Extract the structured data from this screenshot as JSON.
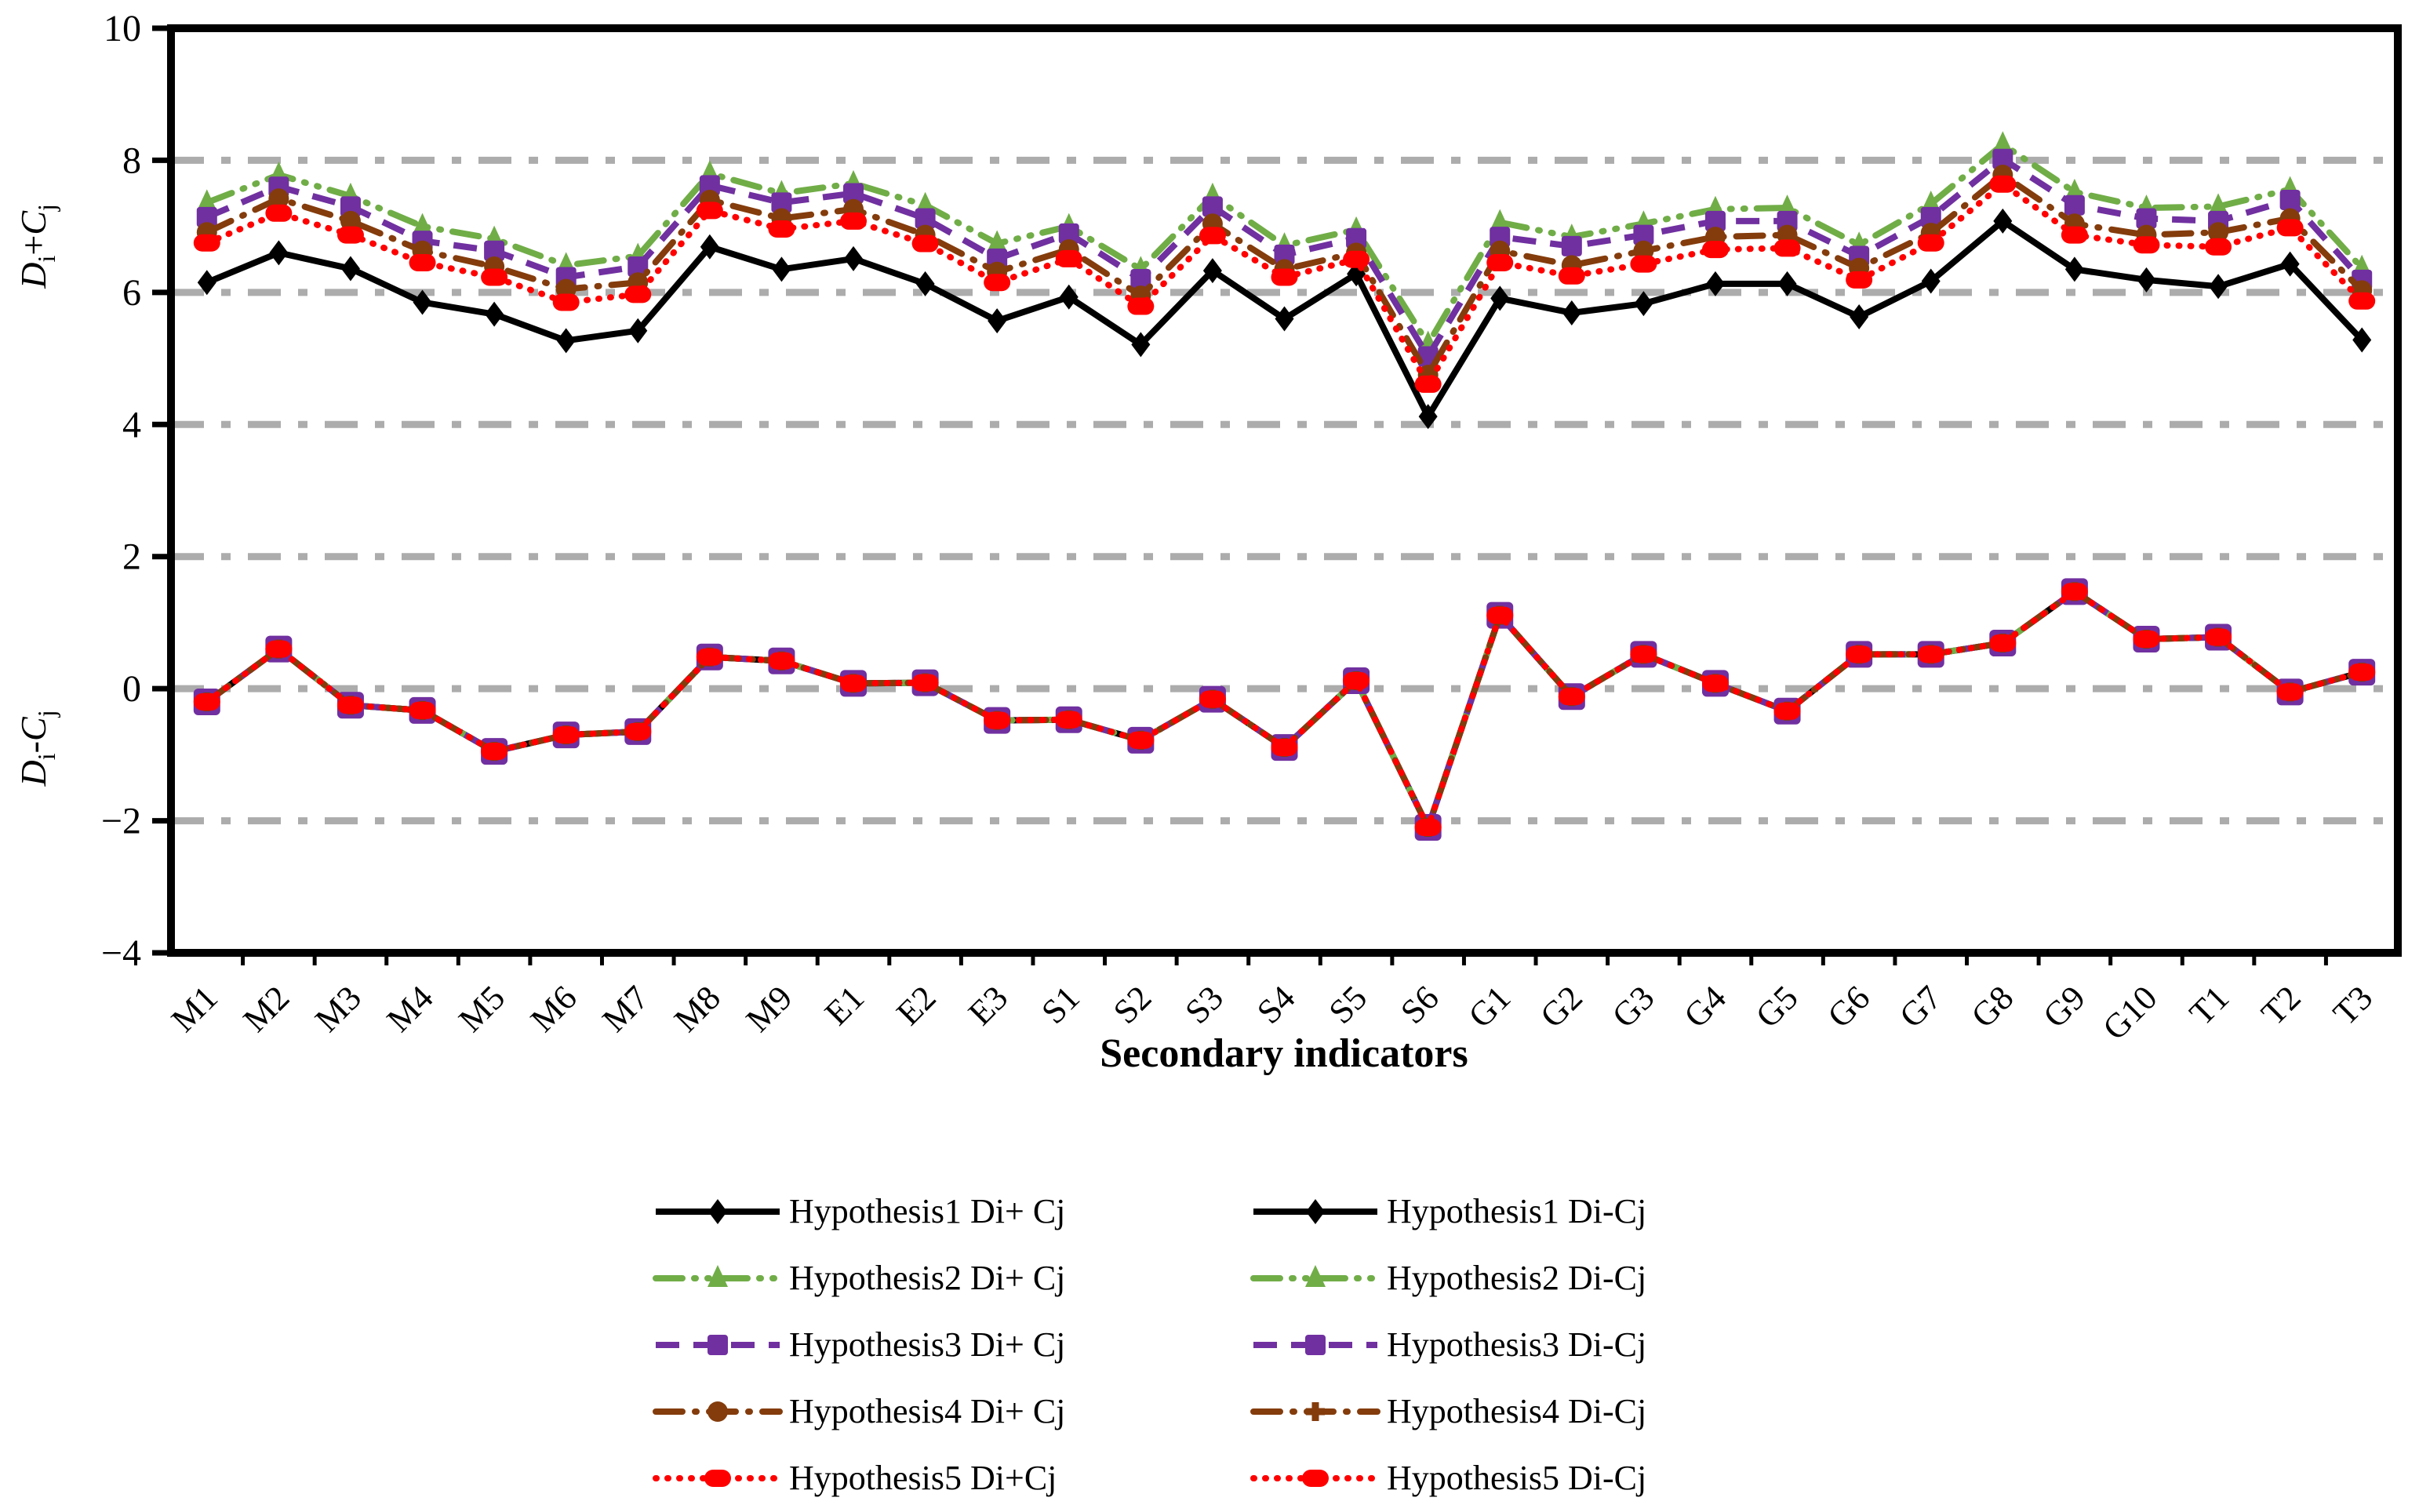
{
  "x_axis_title": "Secondary indicators",
  "y_axis_upper_label": "Di+Cj",
  "y_axis_lower_label": "Di-Cj",
  "chart_data": {
    "type": "line",
    "xlabel": "Secondary indicators",
    "ylabel_upper": "Di+Cj",
    "ylabel_lower": "Di-Cj",
    "ylim": [
      -4,
      10
    ],
    "yticks": [
      10,
      8,
      6,
      4,
      2,
      0,
      -2,
      -4
    ],
    "gridlines_at": [
      8,
      6,
      4,
      2,
      0,
      -2
    ],
    "grid": "dash-dot gray horizontal",
    "legend_position": "bottom, two columns",
    "categories": [
      "M1",
      "M2",
      "M3",
      "M4",
      "M5",
      "M6",
      "M7",
      "M8",
      "M9",
      "E1",
      "E2",
      "E3",
      "S1",
      "S2",
      "S3",
      "S4",
      "S5",
      "S6",
      "G1",
      "G2",
      "G3",
      "G4",
      "G5",
      "G6",
      "G7",
      "G8",
      "G9",
      "G10",
      "T1",
      "T2",
      "T3"
    ],
    "series": [
      {
        "name": "Hypothesis1 Di+ Cj",
        "color": "#000000",
        "style": "solid",
        "marker": "diamond",
        "values": [
          6.15,
          6.6,
          6.36,
          5.85,
          5.67,
          5.27,
          5.42,
          6.69,
          6.35,
          6.51,
          6.13,
          5.57,
          5.93,
          5.21,
          6.33,
          5.6,
          6.28,
          4.12,
          5.91,
          5.69,
          5.83,
          6.13,
          6.13,
          5.63,
          6.17,
          7.08,
          6.35,
          6.19,
          6.09,
          6.43,
          5.28
        ]
      },
      {
        "name": "Hypothesis2 Di+ Cj",
        "color": "#70AD47",
        "style": "dashdotdot",
        "marker": "triangle",
        "values": [
          7.36,
          7.78,
          7.46,
          7.0,
          6.81,
          6.41,
          6.55,
          7.8,
          7.5,
          7.65,
          7.32,
          6.74,
          7.0,
          6.35,
          7.46,
          6.71,
          6.95,
          5.22,
          7.06,
          6.84,
          7.04,
          7.26,
          7.28,
          6.72,
          7.34,
          8.24,
          7.52,
          7.28,
          7.3,
          7.56,
          6.37
        ]
      },
      {
        "name": "Hypothesis3 Di+ Cj",
        "color": "#7030A0",
        "style": "dashed",
        "marker": "square",
        "values": [
          7.14,
          7.6,
          7.3,
          6.78,
          6.63,
          6.23,
          6.39,
          7.62,
          7.36,
          7.5,
          7.12,
          6.51,
          6.89,
          6.2,
          7.3,
          6.57,
          6.82,
          5.03,
          6.84,
          6.7,
          6.87,
          7.08,
          7.08,
          6.55,
          7.14,
          8.02,
          7.32,
          7.12,
          7.08,
          7.4,
          6.19
        ]
      },
      {
        "name": "Hypothesis4 Di+ Cj",
        "color": "#843C0C",
        "style": "dashdot",
        "marker": "circle",
        "values": [
          6.91,
          7.42,
          7.08,
          6.63,
          6.39,
          6.05,
          6.15,
          7.4,
          7.12,
          7.26,
          6.87,
          6.31,
          6.65,
          5.95,
          7.04,
          6.35,
          6.6,
          4.75,
          6.63,
          6.41,
          6.63,
          6.84,
          6.87,
          6.37,
          6.9,
          7.78,
          7.04,
          6.87,
          6.91,
          7.12,
          6.03
        ]
      },
      {
        "name": "Hypothesis5 Di+Cj",
        "color": "#FF0000",
        "style": "dotted",
        "marker": "oval",
        "values": [
          6.75,
          7.2,
          6.87,
          6.45,
          6.23,
          5.85,
          5.97,
          7.24,
          6.96,
          7.08,
          6.74,
          6.15,
          6.51,
          5.79,
          6.86,
          6.23,
          6.5,
          4.61,
          6.45,
          6.25,
          6.43,
          6.65,
          6.67,
          6.19,
          6.75,
          7.64,
          6.87,
          6.72,
          6.69,
          6.98,
          5.87
        ]
      },
      {
        "name": "Hypothesis1 Di-Cj",
        "color": "#000000",
        "style": "solid",
        "marker": "diamond",
        "values": [
          -0.2,
          0.6,
          -0.25,
          -0.33,
          -0.95,
          -0.7,
          -0.65,
          0.48,
          0.42,
          0.08,
          0.09,
          -0.48,
          -0.47,
          -0.78,
          -0.16,
          -0.89,
          0.12,
          -2.1,
          1.11,
          -0.12,
          0.52,
          0.08,
          -0.34,
          0.52,
          0.52,
          0.69,
          1.47,
          0.75,
          0.78,
          -0.05,
          0.25
        ]
      },
      {
        "name": "Hypothesis2 Di-Cj",
        "color": "#70AD47",
        "style": "dashdotdot",
        "marker": "triangle",
        "values": [
          -0.2,
          0.6,
          -0.25,
          -0.33,
          -0.95,
          -0.7,
          -0.65,
          0.48,
          0.42,
          0.08,
          0.09,
          -0.48,
          -0.47,
          -0.78,
          -0.16,
          -0.89,
          0.12,
          -2.1,
          1.11,
          -0.12,
          0.52,
          0.08,
          -0.34,
          0.52,
          0.52,
          0.69,
          1.47,
          0.75,
          0.78,
          -0.05,
          0.25
        ]
      },
      {
        "name": "Hypothesis3 Di-Cj",
        "color": "#7030A0",
        "style": "dashed",
        "marker": "bigsquare",
        "values": [
          -0.2,
          0.6,
          -0.25,
          -0.33,
          -0.95,
          -0.7,
          -0.65,
          0.48,
          0.42,
          0.08,
          0.09,
          -0.48,
          -0.47,
          -0.78,
          -0.16,
          -0.89,
          0.12,
          -2.1,
          1.11,
          -0.12,
          0.52,
          0.08,
          -0.34,
          0.52,
          0.52,
          0.69,
          1.47,
          0.75,
          0.78,
          -0.05,
          0.25
        ]
      },
      {
        "name": "Hypothesis4 Di-Cj",
        "color": "#843C0C",
        "style": "dashdot",
        "marker": "plus",
        "values": [
          -0.2,
          0.6,
          -0.25,
          -0.33,
          -0.95,
          -0.7,
          -0.65,
          0.48,
          0.42,
          0.08,
          0.09,
          -0.48,
          -0.47,
          -0.78,
          -0.16,
          -0.89,
          0.12,
          -2.1,
          1.11,
          -0.12,
          0.52,
          0.08,
          -0.34,
          0.52,
          0.52,
          0.69,
          1.47,
          0.75,
          0.78,
          -0.05,
          0.25
        ]
      },
      {
        "name": "Hypothesis5 Di-Cj",
        "color": "#FF0000",
        "style": "dotted",
        "marker": "oval",
        "values": [
          -0.2,
          0.6,
          -0.25,
          -0.33,
          -0.95,
          -0.7,
          -0.65,
          0.48,
          0.42,
          0.08,
          0.09,
          -0.48,
          -0.47,
          -0.78,
          -0.16,
          -0.89,
          0.12,
          -2.1,
          1.11,
          -0.12,
          0.52,
          0.08,
          -0.34,
          0.52,
          0.52,
          0.69,
          1.47,
          0.75,
          0.78,
          -0.05,
          0.25
        ]
      }
    ],
    "legend": {
      "left": [
        "Hypothesis1 Di+ Cj",
        "Hypothesis2 Di+ Cj",
        "Hypothesis3 Di+ Cj",
        "Hypothesis4 Di+ Cj",
        "Hypothesis5 Di+Cj"
      ],
      "right": [
        "Hypothesis1 Di-Cj",
        "Hypothesis2 Di-Cj",
        "Hypothesis3 Di-Cj",
        "Hypothesis4 Di-Cj",
        "Hypothesis5 Di-Cj"
      ]
    }
  }
}
